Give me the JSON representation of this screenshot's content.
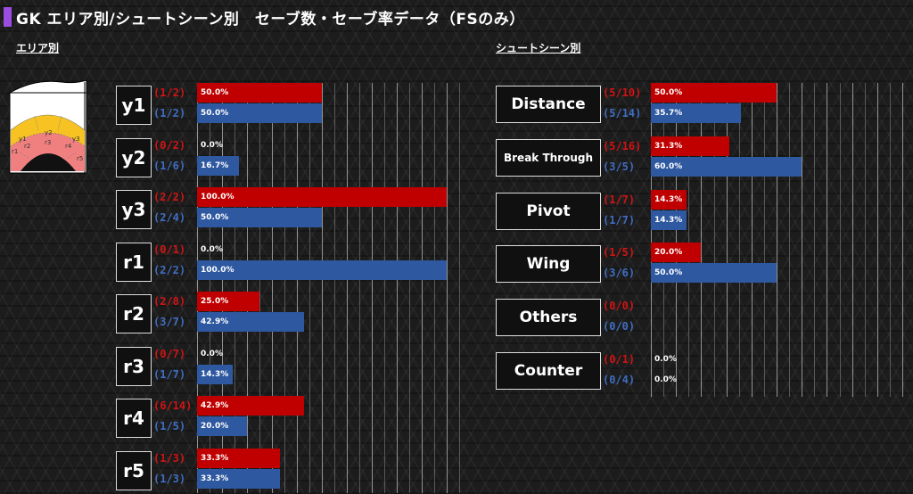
{
  "title": "GK エリア別/シュートシーン別　セーブ数・セーブ率データ（FSのみ）",
  "left_label": "エリア別",
  "right_label": "シュートシーン別",
  "zone_labels": [
    "y1",
    "y2",
    "y3",
    "r1",
    "r2",
    "r3",
    "r4",
    "r5"
  ],
  "colors": {
    "red": "#c00000",
    "blue": "#2e58a0",
    "accent": "#9b4de0"
  },
  "chart_data": [
    {
      "type": "bar",
      "title": "エリア別",
      "categories": [
        "y1",
        "y2",
        "y3",
        "r1",
        "r2",
        "r3",
        "r4",
        "r5"
      ],
      "xlim": [
        0,
        100
      ],
      "series": [
        {
          "color": "#c00000",
          "counts": [
            "(1/2)",
            "(0/2)",
            "(2/2)",
            "(0/1)",
            "(2/8)",
            "(0/7)",
            "(6/14)",
            "(1/3)"
          ],
          "values": [
            50.0,
            0.0,
            100.0,
            0.0,
            25.0,
            0.0,
            42.9,
            33.3
          ],
          "labels": [
            "50.0%",
            "0.0%",
            "100.0%",
            "0.0%",
            "25.0%",
            "0.0%",
            "42.9%",
            "33.3%"
          ]
        },
        {
          "color": "#2e58a0",
          "counts": [
            "(1/2)",
            "(1/6)",
            "(2/4)",
            "(2/2)",
            "(3/7)",
            "(1/7)",
            "(1/5)",
            "(1/3)"
          ],
          "values": [
            50.0,
            16.7,
            50.0,
            100.0,
            42.9,
            14.3,
            20.0,
            33.3
          ],
          "labels": [
            "50.0%",
            "16.7%",
            "50.0%",
            "100.0%",
            "42.9%",
            "14.3%",
            "20.0%",
            "33.3%"
          ]
        }
      ]
    },
    {
      "type": "bar",
      "title": "シュートシーン別",
      "categories": [
        "Distance",
        "Break Through",
        "Pivot",
        "Wing",
        "Others",
        "Counter"
      ],
      "xlim": [
        0,
        100
      ],
      "series": [
        {
          "color": "#c00000",
          "counts": [
            "(5/10)",
            "(5/16)",
            "(1/7)",
            "(1/5)",
            "(0/0)",
            "(0/1)"
          ],
          "values": [
            50.0,
            31.3,
            14.3,
            20.0,
            null,
            0.0
          ],
          "labels": [
            "50.0%",
            "31.3%",
            "14.3%",
            "20.0%",
            "",
            "0.0%"
          ]
        },
        {
          "color": "#2e58a0",
          "counts": [
            "(5/14)",
            "(3/5)",
            "(1/7)",
            "(3/6)",
            "(0/0)",
            "(0/4)"
          ],
          "values": [
            35.7,
            60.0,
            14.3,
            50.0,
            null,
            0.0
          ],
          "labels": [
            "35.7%",
            "60.0%",
            "14.3%",
            "50.0%",
            "",
            "0.0%"
          ]
        }
      ]
    }
  ]
}
